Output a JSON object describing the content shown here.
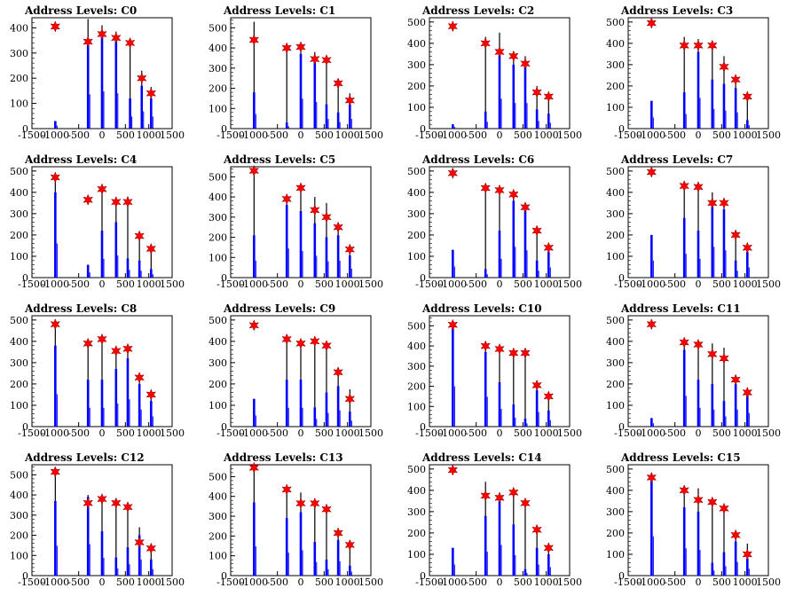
{
  "figure": {
    "background": "#ffffff",
    "colors": {
      "hist_fill": "#0000ff",
      "hist_line": "#000000",
      "marker": "#ff0000",
      "axis": "#000000"
    }
  },
  "chart_data": [
    {
      "type": "bar",
      "title": "Address Levels: C0",
      "xlim": [
        -1500,
        1500
      ],
      "ylim": [
        0,
        440
      ],
      "xticks": [
        "-1500",
        "-1000",
        "-500",
        "0",
        "500",
        "1000",
        "1500"
      ],
      "yticks": [
        "0",
        "100",
        "200",
        "300",
        "400"
      ],
      "levels_x": [
        -1000,
        -300,
        0,
        300,
        600,
        850,
        1050
      ],
      "levels_y": [
        405,
        345,
        375,
        360,
        340,
        200,
        140
      ],
      "peaks": [
        30,
        435,
        410,
        385,
        350,
        230,
        165
      ],
      "fill_heights": [
        30,
        340,
        370,
        350,
        120,
        170,
        120
      ]
    },
    {
      "type": "bar",
      "title": "Address Levels: C1",
      "xlim": [
        -1500,
        1500
      ],
      "ylim": [
        0,
        550
      ],
      "xticks": [
        "-1500",
        "-1000",
        "-500",
        "0",
        "500",
        "1000",
        "1500"
      ],
      "yticks": [
        "0",
        "100",
        "200",
        "300",
        "400",
        "500"
      ],
      "levels_x": [
        -1000,
        -300,
        0,
        300,
        550,
        800,
        1050
      ],
      "levels_y": [
        440,
        400,
        405,
        345,
        340,
        225,
        140
      ],
      "peaks": [
        530,
        410,
        420,
        380,
        350,
        230,
        175
      ],
      "fill_heights": [
        180,
        30,
        370,
        330,
        120,
        80,
        120
      ]
    },
    {
      "type": "bar",
      "title": "Address Levels: C2",
      "xlim": [
        -1500,
        1500
      ],
      "ylim": [
        0,
        520
      ],
      "xticks": [
        "-1500",
        "-1000",
        "-500",
        "0",
        "500",
        "1000",
        "1500"
      ],
      "yticks": [
        "0",
        "100",
        "200",
        "300",
        "400",
        "500"
      ],
      "levels_x": [
        -1000,
        -300,
        0,
        300,
        550,
        800,
        1050
      ],
      "levels_y": [
        480,
        400,
        360,
        340,
        305,
        170,
        150
      ],
      "peaks": [
        20,
        430,
        450,
        345,
        340,
        200,
        160
      ],
      "fill_heights": [
        20,
        80,
        350,
        300,
        300,
        90,
        70
      ]
    },
    {
      "type": "bar",
      "title": "Address Levels: C3",
      "xlim": [
        -1500,
        1500
      ],
      "ylim": [
        0,
        520
      ],
      "xticks": [
        "-1500",
        "-1000",
        "-500",
        "0",
        "500",
        "1000",
        "1500"
      ],
      "yticks": [
        "0",
        "100",
        "200",
        "300",
        "400",
        "500"
      ],
      "levels_x": [
        -1000,
        -300,
        0,
        300,
        550,
        800,
        1050
      ],
      "levels_y": [
        495,
        390,
        390,
        390,
        290,
        230,
        150
      ],
      "peaks": [
        130,
        430,
        420,
        390,
        340,
        240,
        160
      ],
      "fill_heights": [
        130,
        170,
        360,
        230,
        210,
        190,
        40
      ]
    },
    {
      "type": "bar",
      "title": "Address Levels: C4",
      "xlim": [
        -1500,
        1500
      ],
      "ylim": [
        0,
        520
      ],
      "xticks": [
        "-1500",
        "-1000",
        "-500",
        "0",
        "500",
        "1000",
        "1500"
      ],
      "yticks": [
        "0",
        "100",
        "200",
        "300",
        "400",
        "500"
      ],
      "levels_x": [
        -1000,
        -300,
        0,
        300,
        550,
        800,
        1050
      ],
      "levels_y": [
        470,
        365,
        415,
        355,
        355,
        195,
        135
      ],
      "peaks": [
        470,
        60,
        420,
        350,
        380,
        210,
        140
      ],
      "fill_heights": [
        400,
        60,
        220,
        260,
        90,
        80,
        40
      ]
    },
    {
      "type": "bar",
      "title": "Address Levels: C5",
      "xlim": [
        -1500,
        1500
      ],
      "ylim": [
        0,
        550
      ],
      "xticks": [
        "-1500",
        "-1000",
        "-500",
        "0",
        "500",
        "1000",
        "1500"
      ],
      "yticks": [
        "0",
        "100",
        "200",
        "300",
        "400",
        "500"
      ],
      "levels_x": [
        -1000,
        -300,
        0,
        300,
        550,
        800,
        1050
      ],
      "levels_y": [
        530,
        390,
        445,
        335,
        300,
        250,
        140
      ],
      "peaks": [
        540,
        400,
        450,
        400,
        370,
        270,
        140
      ],
      "fill_heights": [
        210,
        360,
        330,
        270,
        200,
        210,
        110
      ]
    },
    {
      "type": "bar",
      "title": "Address Levels: C6",
      "xlim": [
        -1500,
        1500
      ],
      "ylim": [
        0,
        520
      ],
      "xticks": [
        "-1500",
        "-1000",
        "-500",
        "0",
        "500",
        "1000",
        "1500"
      ],
      "yticks": [
        "0",
        "100",
        "200",
        "300",
        "400",
        "500"
      ],
      "levels_x": [
        -1000,
        -300,
        0,
        300,
        550,
        800,
        1050
      ],
      "levels_y": [
        490,
        420,
        410,
        390,
        330,
        220,
        140
      ],
      "peaks": [
        130,
        420,
        420,
        390,
        340,
        230,
        140
      ],
      "fill_heights": [
        130,
        40,
        220,
        360,
        320,
        80,
        120
      ]
    },
    {
      "type": "bar",
      "title": "Address Levels: C7",
      "xlim": [
        -1500,
        1500
      ],
      "ylim": [
        0,
        520
      ],
      "xticks": [
        "-1500",
        "-1000",
        "-500",
        "0",
        "500",
        "1000",
        "1500"
      ],
      "yticks": [
        "0",
        "100",
        "200",
        "300",
        "400",
        "500"
      ],
      "levels_x": [
        -1000,
        -300,
        0,
        300,
        550,
        800,
        1050
      ],
      "levels_y": [
        495,
        430,
        425,
        350,
        350,
        200,
        140
      ],
      "peaks": [
        200,
        430,
        420,
        400,
        370,
        210,
        150
      ],
      "fill_heights": [
        200,
        280,
        220,
        360,
        320,
        80,
        120
      ]
    },
    {
      "type": "bar",
      "title": "Address Levels: C8",
      "xlim": [
        -1500,
        1500
      ],
      "ylim": [
        0,
        520
      ],
      "xticks": [
        "-1500",
        "-1000",
        "-500",
        "0",
        "500",
        "1000",
        "1500"
      ],
      "yticks": [
        "0",
        "100",
        "200",
        "300",
        "400",
        "500"
      ],
      "levels_x": [
        -1000,
        -300,
        0,
        300,
        550,
        800,
        1050
      ],
      "levels_y": [
        480,
        390,
        410,
        355,
        365,
        230,
        150
      ],
      "peaks": [
        480,
        380,
        410,
        360,
        370,
        230,
        160
      ],
      "fill_heights": [
        380,
        220,
        220,
        270,
        320,
        200,
        120
      ]
    },
    {
      "type": "bar",
      "title": "Address Levels: C9",
      "xlim": [
        -1500,
        1500
      ],
      "ylim": [
        0,
        520
      ],
      "xticks": [
        "-1500",
        "-1000",
        "-500",
        "0",
        "500",
        "1000",
        "1500"
      ],
      "yticks": [
        "0",
        "100",
        "200",
        "300",
        "400",
        "500"
      ],
      "levels_x": [
        -1000,
        -300,
        0,
        300,
        550,
        800,
        1050
      ],
      "levels_y": [
        475,
        410,
        390,
        400,
        380,
        255,
        130
      ],
      "peaks": [
        130,
        410,
        390,
        400,
        390,
        260,
        175
      ],
      "fill_heights": [
        130,
        220,
        220,
        90,
        160,
        190,
        70
      ]
    },
    {
      "type": "bar",
      "title": "Address Levels: C10",
      "xlim": [
        -1500,
        1500
      ],
      "ylim": [
        0,
        550
      ],
      "xticks": [
        "-1500",
        "-1000",
        "-500",
        "0",
        "500",
        "1000",
        "1500"
      ],
      "yticks": [
        "0",
        "100",
        "200",
        "300",
        "400",
        "500"
      ],
      "levels_x": [
        -1000,
        -300,
        0,
        300,
        550,
        800,
        1050
      ],
      "levels_y": [
        505,
        400,
        385,
        365,
        365,
        205,
        150
      ],
      "peaks": [
        500,
        400,
        390,
        370,
        360,
        220,
        150
      ],
      "fill_heights": [
        500,
        370,
        220,
        110,
        40,
        180,
        80
      ]
    },
    {
      "type": "bar",
      "title": "Address Levels: C11",
      "xlim": [
        -1500,
        1500
      ],
      "ylim": [
        0,
        520
      ],
      "xticks": [
        "-1500",
        "-1000",
        "-500",
        "0",
        "500",
        "1000",
        "1500"
      ],
      "yticks": [
        "0",
        "100",
        "200",
        "300",
        "400",
        "500"
      ],
      "levels_x": [
        -1000,
        -300,
        0,
        300,
        550,
        800,
        1050
      ],
      "levels_y": [
        480,
        395,
        385,
        340,
        320,
        220,
        160
      ],
      "peaks": [
        40,
        410,
        380,
        390,
        370,
        200,
        160
      ],
      "fill_heights": [
        40,
        360,
        220,
        200,
        120,
        200,
        160
      ]
    },
    {
      "type": "bar",
      "title": "Address Levels: C12",
      "xlim": [
        -1500,
        1500
      ],
      "ylim": [
        0,
        550
      ],
      "xticks": [
        "-1500",
        "-1000",
        "-500",
        "0",
        "500",
        "1000",
        "1500"
      ],
      "yticks": [
        "0",
        "100",
        "200",
        "300",
        "400",
        "500"
      ],
      "levels_x": [
        -1000,
        -300,
        0,
        300,
        550,
        800,
        1050
      ],
      "levels_y": [
        515,
        360,
        380,
        360,
        340,
        165,
        135
      ],
      "peaks": [
        520,
        400,
        390,
        360,
        350,
        240,
        150
      ],
      "fill_heights": [
        370,
        390,
        220,
        90,
        140,
        200,
        80
      ]
    },
    {
      "type": "bar",
      "title": "Address Levels: C13",
      "xlim": [
        -1500,
        1500
      ],
      "ylim": [
        0,
        560
      ],
      "xticks": [
        "-1500",
        "-1000",
        "-500",
        "0",
        "500",
        "1000",
        "1500"
      ],
      "yticks": [
        "0",
        "100",
        "200",
        "300",
        "400",
        "500"
      ],
      "levels_x": [
        -1000,
        -300,
        0,
        300,
        550,
        800,
        1050
      ],
      "levels_y": [
        545,
        435,
        365,
        365,
        335,
        215,
        155
      ],
      "peaks": [
        540,
        420,
        420,
        370,
        330,
        210,
        160
      ],
      "fill_heights": [
        370,
        290,
        320,
        170,
        80,
        180,
        50
      ]
    },
    {
      "type": "bar",
      "title": "Address Levels: C14",
      "xlim": [
        -1500,
        1500
      ],
      "ylim": [
        0,
        520
      ],
      "xticks": [
        "-1500",
        "-1000",
        "-500",
        "0",
        "500",
        "1000",
        "1500"
      ],
      "yticks": [
        "0",
        "100",
        "200",
        "300",
        "400",
        "500"
      ],
      "levels_x": [
        -1000,
        -300,
        0,
        300,
        550,
        800,
        1050
      ],
      "levels_y": [
        495,
        375,
        365,
        390,
        340,
        215,
        130
      ],
      "peaks": [
        130,
        440,
        390,
        400,
        340,
        220,
        130
      ],
      "fill_heights": [
        130,
        280,
        360,
        240,
        30,
        130,
        100
      ]
    },
    {
      "type": "bar",
      "title": "Address Levels: C15",
      "xlim": [
        -1500,
        1500
      ],
      "ylim": [
        0,
        520
      ],
      "xticks": [
        "-1500",
        "-1000",
        "-500",
        "0",
        "500",
        "1000",
        "1500"
      ],
      "yticks": [
        "0",
        "100",
        "200",
        "300",
        "400",
        "500"
      ],
      "levels_x": [
        -1000,
        -300,
        0,
        300,
        550,
        800,
        1050
      ],
      "levels_y": [
        460,
        400,
        355,
        345,
        315,
        190,
        100
      ],
      "peaks": [
        460,
        410,
        410,
        350,
        320,
        200,
        150
      ],
      "fill_heights": [
        460,
        320,
        300,
        60,
        110,
        160,
        80
      ]
    }
  ]
}
